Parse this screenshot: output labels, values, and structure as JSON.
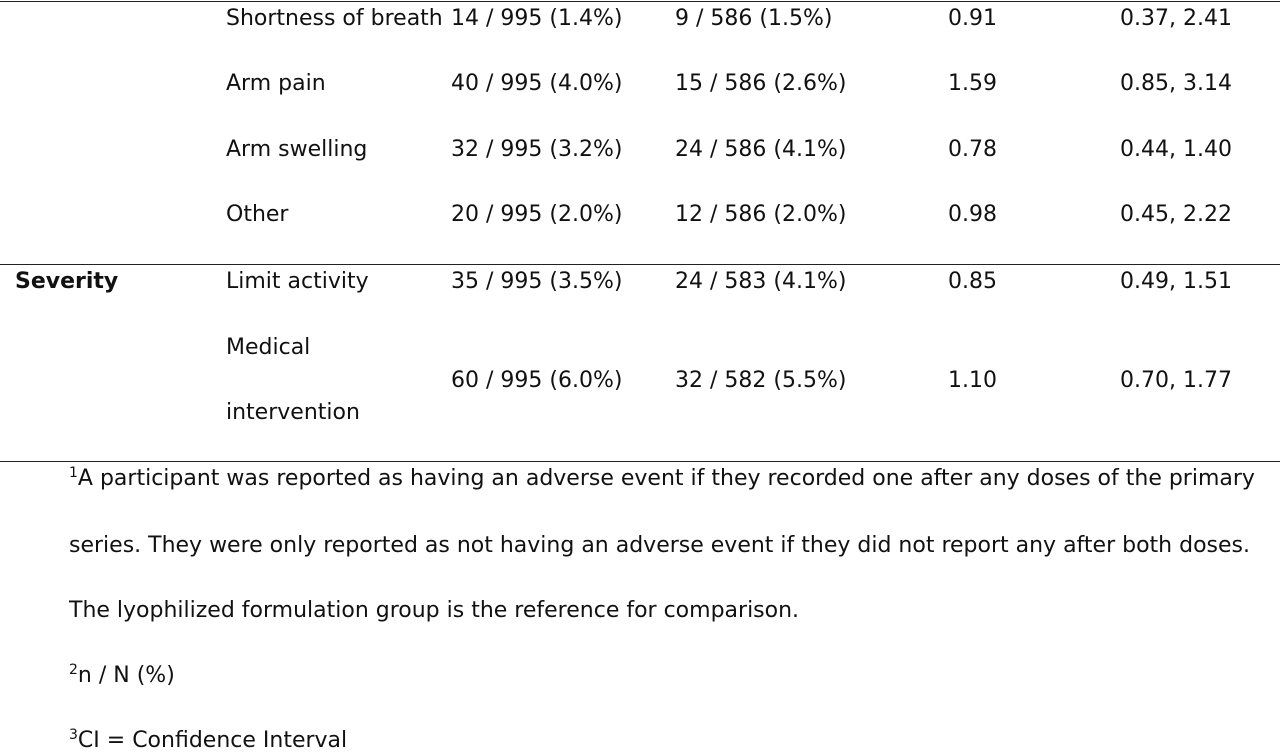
{
  "table": {
    "rows": [
      {
        "group": "",
        "item": "Shortness of breath",
        "col1": "14 / 995 (1.4%)",
        "col2": "9 / 586 (1.5%)",
        "ratio": "0.91",
        "ci": "0.37, 2.41"
      },
      {
        "group": "",
        "item": "Arm pain",
        "col1": "40 / 995 (4.0%)",
        "col2": "15 / 586 (2.6%)",
        "ratio": "1.59",
        "ci": "0.85, 3.14"
      },
      {
        "group": "",
        "item": "Arm swelling",
        "col1": "32 / 995 (3.2%)",
        "col2": "24 / 586 (4.1%)",
        "ratio": "0.78",
        "ci": "0.44, 1.40"
      },
      {
        "group": "",
        "item": "Other",
        "col1": "20 / 995 (2.0%)",
        "col2": "12 / 586 (2.0%)",
        "ratio": "0.98",
        "ci": "0.45, 2.22"
      },
      {
        "group": "Severity",
        "item": "Limit activity",
        "col1": "35 / 995 (3.5%)",
        "col2": "24 / 583 (4.1%)",
        "ratio": "0.85",
        "ci": "0.49, 1.51"
      },
      {
        "group": "",
        "item_line1": "Medical",
        "item_line2": "intervention",
        "col1": "60 / 995 (6.0%)",
        "col2": "32 / 582 (5.5%)",
        "ratio": "1.10",
        "ci": "0.70, 1.77"
      }
    ]
  },
  "footnotes": {
    "n1_marker": "1",
    "n1_line1": "A participant was reported as having an adverse event if they recorded one after any doses of the primary",
    "n1_line2": "series. They were only reported as not having an adverse event if they did not report any after both doses.",
    "n1_line3": "The lyophilized formulation group is the reference for comparison.",
    "n2_marker": "2",
    "n2_text": "n / N (%)",
    "n3_marker": "3",
    "n3_text": "CI = Confidence Interval"
  }
}
